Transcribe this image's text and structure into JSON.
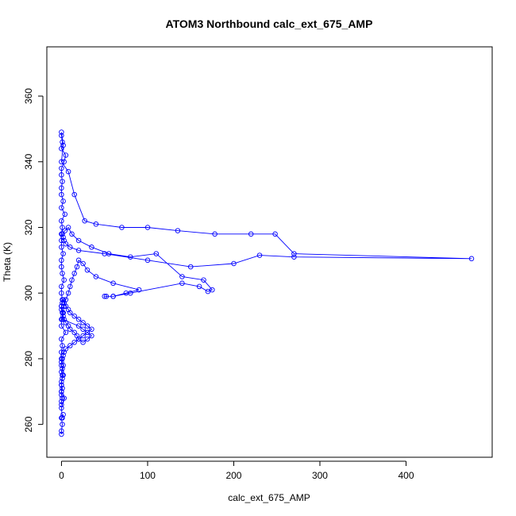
{
  "chart_data": {
    "type": "scatter",
    "title": "ATOM3 Northbound calc_ext_675_AMP",
    "xlabel": "calc_ext_675_AMP",
    "ylabel": "Theta (K)",
    "xlim": [
      -17,
      500
    ],
    "ylim": [
      250,
      375
    ],
    "x_ticks": [
      0,
      100,
      200,
      300,
      400
    ],
    "y_ticks": [
      260,
      280,
      300,
      320,
      340,
      360
    ],
    "grid": false,
    "colors": {
      "series": "#0000ff",
      "axis": "#000000"
    },
    "series": [
      {
        "x": [
          0,
          0,
          1,
          0,
          2,
          1,
          0,
          3,
          0,
          0,
          1,
          2,
          0,
          0,
          1,
          0,
          5,
          0,
          0,
          2,
          0,
          1,
          0,
          0,
          3,
          1,
          0,
          0,
          2,
          0,
          0,
          0,
          1,
          0,
          4,
          0,
          2,
          0,
          0,
          1,
          0,
          0,
          3,
          5,
          0,
          1,
          0,
          0,
          2,
          0,
          8,
          15,
          27,
          40,
          70,
          100,
          135,
          178,
          220,
          248,
          270,
          476,
          270,
          230,
          200,
          150,
          100,
          50,
          20,
          10,
          5,
          3,
          2,
          1,
          4,
          8,
          12,
          20,
          35,
          55,
          80,
          110,
          140,
          165,
          175,
          170,
          160,
          140,
          80,
          60,
          50,
          52,
          60,
          75,
          90,
          60,
          40,
          30,
          25,
          20,
          18,
          15,
          12,
          10,
          8,
          5,
          3,
          2,
          1,
          20,
          25,
          30,
          35,
          30,
          25,
          20,
          18,
          15,
          10,
          8,
          5,
          3,
          2,
          1,
          0,
          0,
          1,
          2,
          3,
          5,
          8,
          10,
          15,
          20,
          25,
          30,
          35,
          30,
          25,
          20,
          15,
          10,
          5,
          3,
          2,
          1,
          0,
          0,
          1,
          0,
          2,
          1,
          0,
          0,
          1,
          0,
          0,
          1,
          0,
          0
        ],
        "y": [
          257,
          258,
          260,
          262,
          263,
          262,
          265,
          268,
          270,
          272,
          275,
          278,
          280,
          282,
          284,
          286,
          288,
          290,
          292,
          294,
          296,
          298,
          300,
          302,
          304,
          306,
          308,
          310,
          312,
          314,
          316,
          318,
          320,
          322,
          324,
          326,
          328,
          330,
          332,
          334,
          336,
          338,
          340,
          342,
          344,
          346,
          348,
          349,
          345,
          340,
          337,
          330,
          322,
          321,
          320,
          320,
          319,
          318,
          318,
          318,
          312,
          310.5,
          311,
          311.5,
          309,
          308,
          310,
          312,
          313,
          314,
          315,
          316,
          317,
          318,
          319,
          320,
          318,
          316,
          314,
          312,
          311,
          312,
          305,
          304,
          301,
          300.5,
          302,
          303,
          300,
          299,
          299,
          299,
          299,
          300,
          301,
          303,
          305,
          307,
          309,
          310,
          308,
          306,
          304,
          302,
          300,
          298,
          296,
          294,
          292,
          290,
          289,
          288,
          287,
          286,
          285,
          286,
          287,
          288,
          289,
          290,
          291,
          292,
          293,
          294,
          295,
          296,
          297,
          298,
          297,
          296,
          295,
          294,
          293,
          292,
          291,
          290,
          289,
          288,
          287,
          286,
          285,
          284,
          283,
          282,
          281,
          280,
          279,
          278,
          277,
          276,
          275,
          274,
          273,
          272,
          271,
          270,
          269,
          268,
          267,
          266
        ]
      }
    ]
  }
}
